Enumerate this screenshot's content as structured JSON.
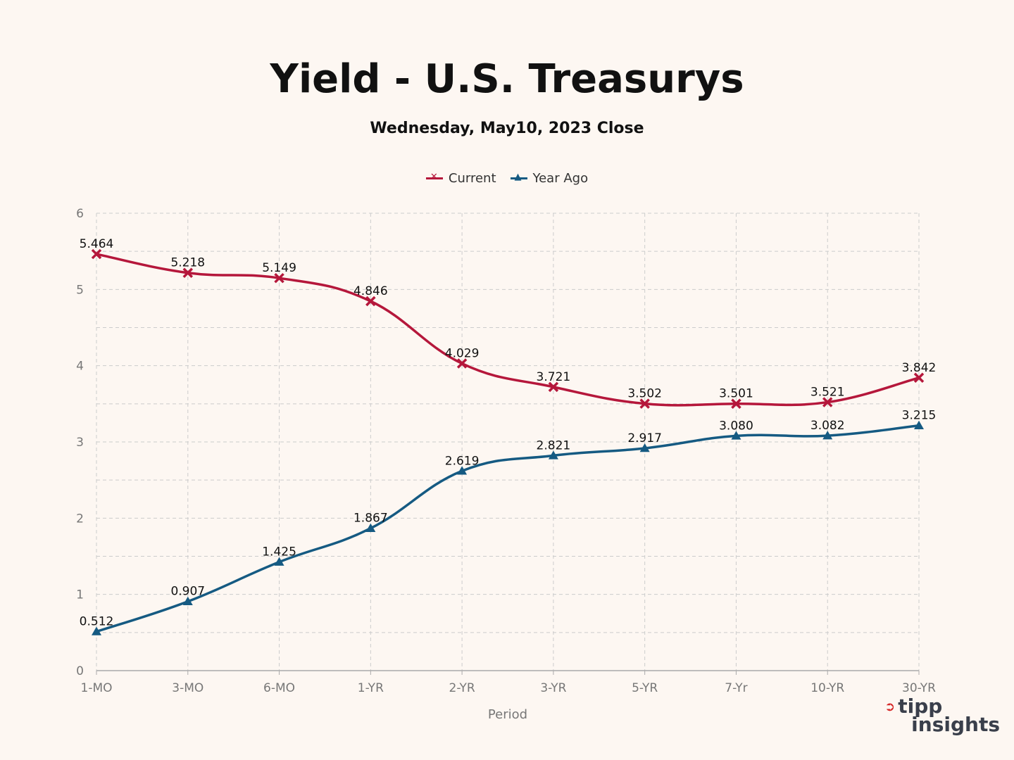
{
  "colors": {
    "current": "#b5173b",
    "year_ago": "#155a82",
    "grid": "#cccccc",
    "axis": "#aaaaaa"
  },
  "logo": {
    "line1": "tipp",
    "line2": "insights"
  },
  "chart_data": {
    "type": "line",
    "title": "Yield - U.S. Treasurys",
    "subtitle": "Wednesday, May10, 2023 Close",
    "xlabel": "Period",
    "ylabel": "",
    "ylim": [
      0,
      6
    ],
    "yticks": [
      0,
      1,
      2,
      3,
      4,
      5,
      6
    ],
    "categories": [
      "1-MO",
      "3-MO",
      "6-MO",
      "1-YR",
      "2-YR",
      "3-YR",
      "5-YR",
      "7-Yr",
      "10-YR",
      "30-YR"
    ],
    "series": [
      {
        "name": "Current",
        "marker": "x",
        "values": [
          5.464,
          5.218,
          5.149,
          4.846,
          4.029,
          3.721,
          3.502,
          3.501,
          3.521,
          3.842
        ],
        "labels": [
          "5.464",
          "5.218",
          "5.149",
          "4.846",
          "4.029",
          "3.721",
          "3.502",
          "3.501",
          "3.521",
          "3.842"
        ]
      },
      {
        "name": "Year Ago",
        "marker": "triangle",
        "values": [
          0.512,
          0.907,
          1.425,
          1.867,
          2.619,
          2.821,
          2.917,
          3.08,
          3.082,
          3.215
        ],
        "labels": [
          "0.512",
          "0.907",
          "1.425",
          "1.867",
          "2.619",
          "2.821",
          "2.917",
          "3.080",
          "3.082",
          "3.215"
        ]
      }
    ],
    "legend_position": "top"
  }
}
